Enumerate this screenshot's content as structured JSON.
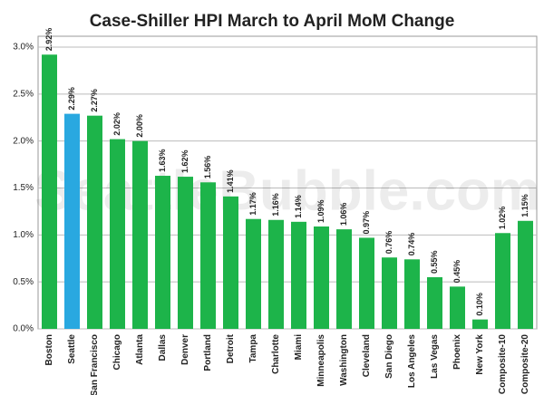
{
  "chart_data": {
    "type": "bar",
    "title": "Case-Shiller HPI March to April MoM Change",
    "watermark": "SeattleBubble.com",
    "categories": [
      "Boston",
      "Seattle",
      "San Francisco",
      "Chicago",
      "Atlanta",
      "Dallas",
      "Denver",
      "Portland",
      "Detroit",
      "Tampa",
      "Charlotte",
      "Miami",
      "Minneapolis",
      "Washington",
      "Cleveland",
      "San Diego",
      "Los Angeles",
      "Las Vegas",
      "Phoenix",
      "New York",
      "Composite-10",
      "Composite-20"
    ],
    "values": [
      2.92,
      2.29,
      2.27,
      2.02,
      2.0,
      1.63,
      1.62,
      1.56,
      1.41,
      1.17,
      1.16,
      1.14,
      1.09,
      1.06,
      0.97,
      0.76,
      0.74,
      0.55,
      0.45,
      0.1,
      1.02,
      1.15
    ],
    "value_labels": [
      "2.92%",
      "2.29%",
      "2.27%",
      "2.02%",
      "2.00%",
      "1.63%",
      "1.62%",
      "1.56%",
      "1.41%",
      "1.17%",
      "1.16%",
      "1.14%",
      "1.09%",
      "1.06%",
      "0.97%",
      "0.76%",
      "0.74%",
      "0.55%",
      "0.45%",
      "0.10%",
      "1.02%",
      "1.15%"
    ],
    "colors": [
      "#1db44a",
      "#29a8e0",
      "#1db44a",
      "#1db44a",
      "#1db44a",
      "#1db44a",
      "#1db44a",
      "#1db44a",
      "#1db44a",
      "#1db44a",
      "#1db44a",
      "#1db44a",
      "#1db44a",
      "#1db44a",
      "#1db44a",
      "#1db44a",
      "#1db44a",
      "#1db44a",
      "#1db44a",
      "#1db44a",
      "#1db44a",
      "#1db44a"
    ],
    "ylim": [
      0,
      3
    ],
    "yticks": [
      {
        "value": 0,
        "label": "0.0%"
      },
      {
        "value": 0.5,
        "label": "0.5%"
      },
      {
        "value": 1,
        "label": "1.0%"
      },
      {
        "value": 1.5,
        "label": "1.5%"
      },
      {
        "value": 2,
        "label": "2.0%"
      },
      {
        "value": 2.5,
        "label": "2.5%"
      },
      {
        "value": 3,
        "label": "3.0%"
      }
    ],
    "grid": true
  }
}
